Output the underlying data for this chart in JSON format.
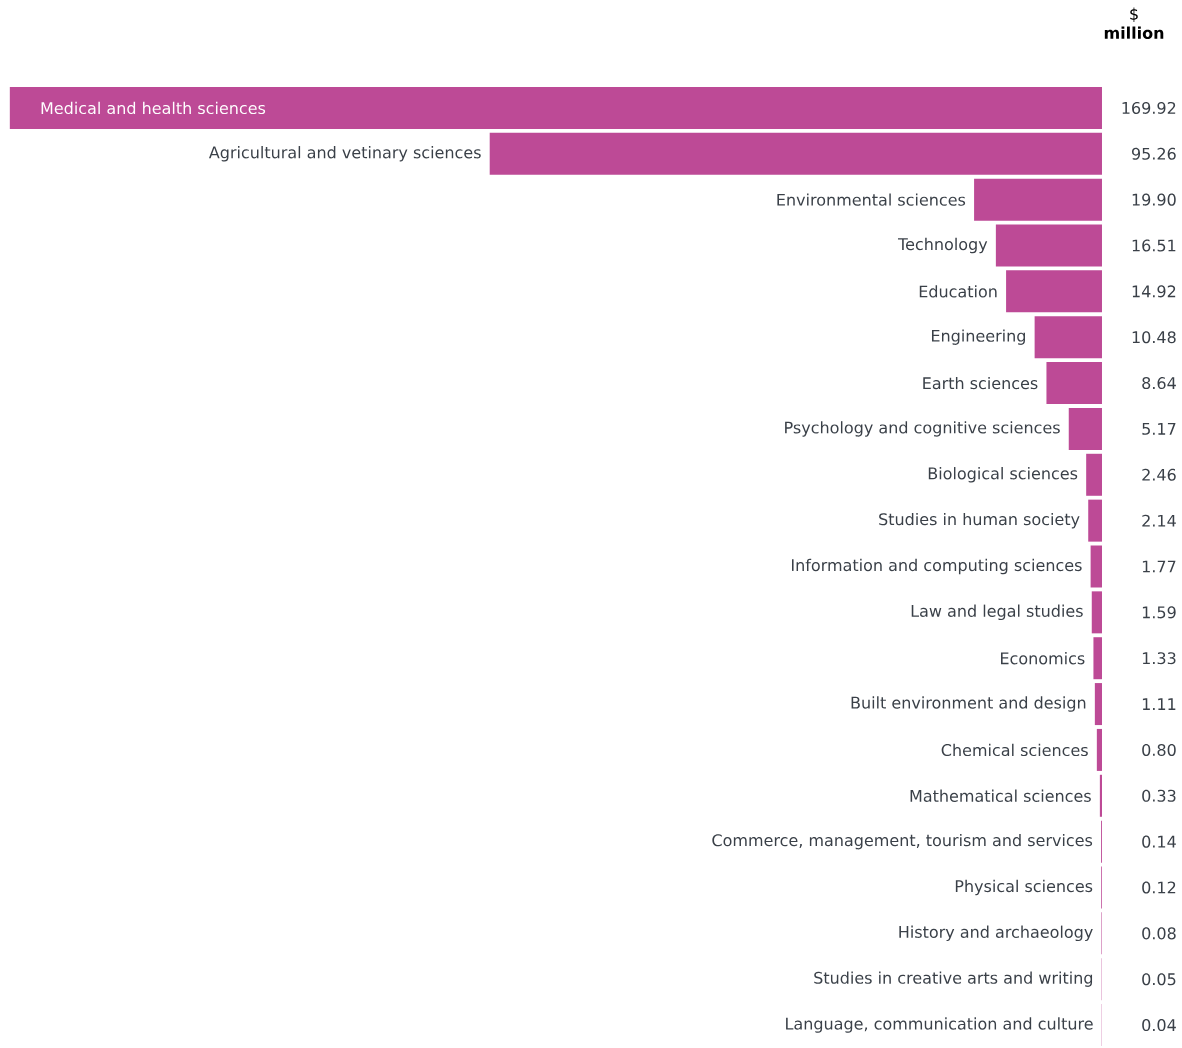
{
  "chart_data": {
    "type": "bar",
    "orientation": "horizontal",
    "title": "$ **million**",
    "categories": [
      "Medical and health sciences",
      "Agricultural and vetinary sciences",
      "Environmental sciences",
      "Technology",
      "Education",
      "Engineering",
      "Earth sciences",
      "Psychology and cognitive sciences",
      "Biological sciences",
      "Studies in human society",
      "Information and computing sciences",
      "Law and legal studies",
      "Economics",
      "Built environment and design",
      "Chemical sciences",
      "Mathematical sciences",
      "Commerce, management, tourism and services",
      "Physical sciences",
      "History and archaeology",
      "Studies in creative arts and writing",
      "Language, communication and culture"
    ],
    "values": [
      169.92,
      95.26,
      19.9,
      16.51,
      14.92,
      10.48,
      8.64,
      5.17,
      2.46,
      2.14,
      1.77,
      1.59,
      1.33,
      1.11,
      0.8,
      0.33,
      0.14,
      0.12,
      0.08,
      0.05,
      0.04
    ],
    "value_labels": [
      "169.92",
      "95.26",
      "19.90",
      "16.51",
      "14.92",
      "10.48",
      "8.64",
      "5.17",
      "2.46",
      "2.14",
      "1.77",
      "1.59",
      "1.33",
      "1.11",
      "0.80",
      "0.33",
      "0.14",
      "0.12",
      "0.08",
      "0.05",
      "0.04"
    ],
    "color": "#bd4a96"
  }
}
